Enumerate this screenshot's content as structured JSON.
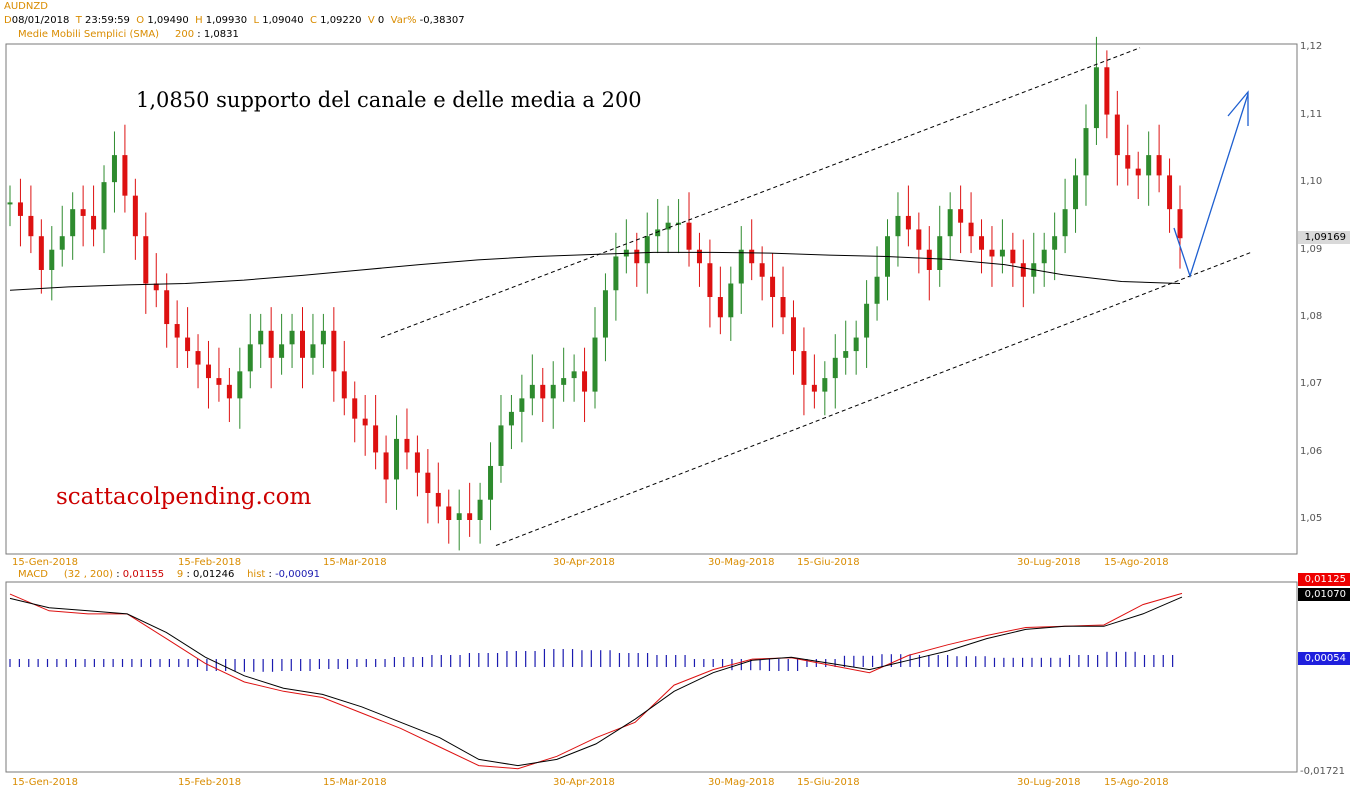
{
  "header": {
    "symbol": "AUDNZD",
    "d_label": "D",
    "d_value": "08/01/2018",
    "t_label": "T",
    "t_value": "23:59:59",
    "o_label": "O",
    "o_value": "1,09490",
    "h_label": "H",
    "h_value": "1,09930",
    "l_label": "L",
    "l_value": "1,09040",
    "c_label": "C",
    "c_value": "1,09220",
    "v_label": "V",
    "v_value": "0",
    "var_label": "Var%",
    "var_value": "-0,38307",
    "sma_label": "Medie Mobili Semplici (SMA)",
    "sma_period": "200",
    "sma_sep": ":",
    "sma_value": "1,0831"
  },
  "macd_header": {
    "name": "MACD",
    "params": "(32 , 200)",
    "sep": ":",
    "macd_value": "0,01155",
    "signal_label": "9",
    "signal_value": "0,01246",
    "hist_label": "hist",
    "hist_value": "-0,00091"
  },
  "annotations": {
    "main_text": "1,0850 supporto del canale e delle media a 200",
    "site_text": "scattacolpending.com"
  },
  "price_axis_labels": [
    "1,12",
    "1,11",
    "1,10",
    "1,09",
    "1,08",
    "1,07",
    "1,06",
    "1,05"
  ],
  "current_price_label": "1,09169",
  "macd_axis_labels": {
    "red_box": "0,01125",
    "black_box": "0,01070",
    "blue_box": "0,00054",
    "bottom": "-0,01721"
  },
  "date_labels": [
    "15-Gen-2018",
    "15-Feb-2018",
    "15-Mar-2018",
    "30-Apr-2018",
    "30-Mag-2018",
    "15-Giu-2018",
    "30-Lug-2018",
    "15-Ago-2018"
  ],
  "colors": {
    "up": "#2e8b2e",
    "down": "#dd1111",
    "sma": "#000000",
    "channel": "#000000",
    "arrow": "#1e5fd0",
    "macd_line": "#000000",
    "signal_line": "#dd1111",
    "histogram": "#1a1ab0",
    "label_accent": "#d98c00"
  },
  "chart_data": [
    {
      "type": "candlestick",
      "title": "AUDNZD",
      "ylim": [
        1.045,
        1.12
      ],
      "y_ticks": [
        1.05,
        1.06,
        1.07,
        1.08,
        1.09,
        1.1,
        1.11,
        1.12
      ],
      "x_range": [
        "15-Gen-2018",
        "15-Ago-2018"
      ],
      "close_path": [
        1.097,
        1.095,
        1.092,
        1.087,
        1.09,
        1.092,
        1.096,
        1.095,
        1.093,
        1.1,
        1.104,
        1.098,
        1.092,
        1.085,
        1.084,
        1.079,
        1.077,
        1.075,
        1.073,
        1.071,
        1.07,
        1.068,
        1.072,
        1.076,
        1.078,
        1.074,
        1.076,
        1.078,
        1.074,
        1.076,
        1.078,
        1.072,
        1.068,
        1.065,
        1.064,
        1.06,
        1.056,
        1.062,
        1.06,
        1.057,
        1.054,
        1.052,
        1.05,
        1.051,
        1.05,
        1.053,
        1.058,
        1.064,
        1.066,
        1.068,
        1.07,
        1.068,
        1.07,
        1.071,
        1.072,
        1.069,
        1.077,
        1.084,
        1.089,
        1.09,
        1.088,
        1.092,
        1.093,
        1.094,
        1.094,
        1.09,
        1.088,
        1.083,
        1.08,
        1.085,
        1.09,
        1.088,
        1.086,
        1.083,
        1.08,
        1.075,
        1.07,
        1.069,
        1.071,
        1.074,
        1.075,
        1.077,
        1.082,
        1.086,
        1.092,
        1.095,
        1.093,
        1.09,
        1.087,
        1.092,
        1.096,
        1.094,
        1.092,
        1.09,
        1.089,
        1.09,
        1.088,
        1.086,
        1.088,
        1.09,
        1.092,
        1.096,
        1.101,
        1.108,
        1.117,
        1.11,
        1.104,
        1.102,
        1.101,
        1.104,
        1.101,
        1.096,
        1.0917
      ],
      "series": [
        {
          "name": "SMA 200",
          "values": [
            1.084,
            1.0845,
            1.0848,
            1.085,
            1.0855,
            1.0862,
            1.087,
            1.0878,
            1.0885,
            1.089,
            1.0893,
            1.0896,
            1.0896,
            1.0895,
            1.0892,
            1.089,
            1.0886,
            1.0878,
            1.0863,
            1.0853,
            1.085
          ]
        }
      ],
      "channel_upper": [
        {
          "x": "15-Mar-2018",
          "y": 1.077
        },
        {
          "x": "15-Ago-2018",
          "y": 1.119
        }
      ],
      "channel_lower": [
        {
          "x": "30-Mar-2018",
          "y": 1.048
        },
        {
          "x": "15-Ago-2018",
          "y": 1.089
        }
      ]
    },
    {
      "type": "line",
      "title": "MACD",
      "series": [
        {
          "name": "MACD",
          "values": [
            0.0105,
            0.009,
            0.0085,
            0.008,
            0.005,
            0.001,
            -0.002,
            -0.004,
            -0.005,
            -0.007,
            -0.0095,
            -0.012,
            -0.0155,
            -0.0165,
            -0.0155,
            -0.013,
            -0.009,
            -0.0045,
            -0.0015,
            0.0005,
            0.001,
            0.0,
            -0.001,
            0.0005,
            0.002,
            0.004,
            0.0055,
            0.006,
            0.006,
            0.008,
            0.0107
          ]
        },
        {
          "name": "9",
          "values": [
            0.0112,
            0.0085,
            0.008,
            0.008,
            0.004,
            0.0,
            -0.003,
            -0.0045,
            -0.0055,
            -0.008,
            -0.0105,
            -0.0135,
            -0.0165,
            -0.017,
            -0.015,
            -0.012,
            -0.0095,
            -0.0035,
            -0.001,
            0.0007,
            0.0009,
            -0.0003,
            -0.0015,
            0.0013,
            0.003,
            0.0045,
            0.0058,
            0.006,
            0.0062,
            0.0095,
            0.0113
          ]
        },
        {
          "name": "hist",
          "values": [
            0.0,
            0.0,
            0.0,
            0.0,
            0.0,
            -0.001,
            -0.0012,
            -0.001,
            -0.0005,
            0.0,
            0.0005,
            0.001,
            0.0015,
            0.002,
            0.0025,
            0.0022,
            0.0015,
            0.001,
            0.0,
            -0.0008,
            -0.001,
            0.0,
            0.0008,
            0.0012,
            0.001,
            0.0007,
            0.0003,
            0.0003,
            0.001,
            0.0018,
            0.001
          ]
        }
      ],
      "ylim": [
        -0.01721,
        0.0125
      ]
    }
  ]
}
